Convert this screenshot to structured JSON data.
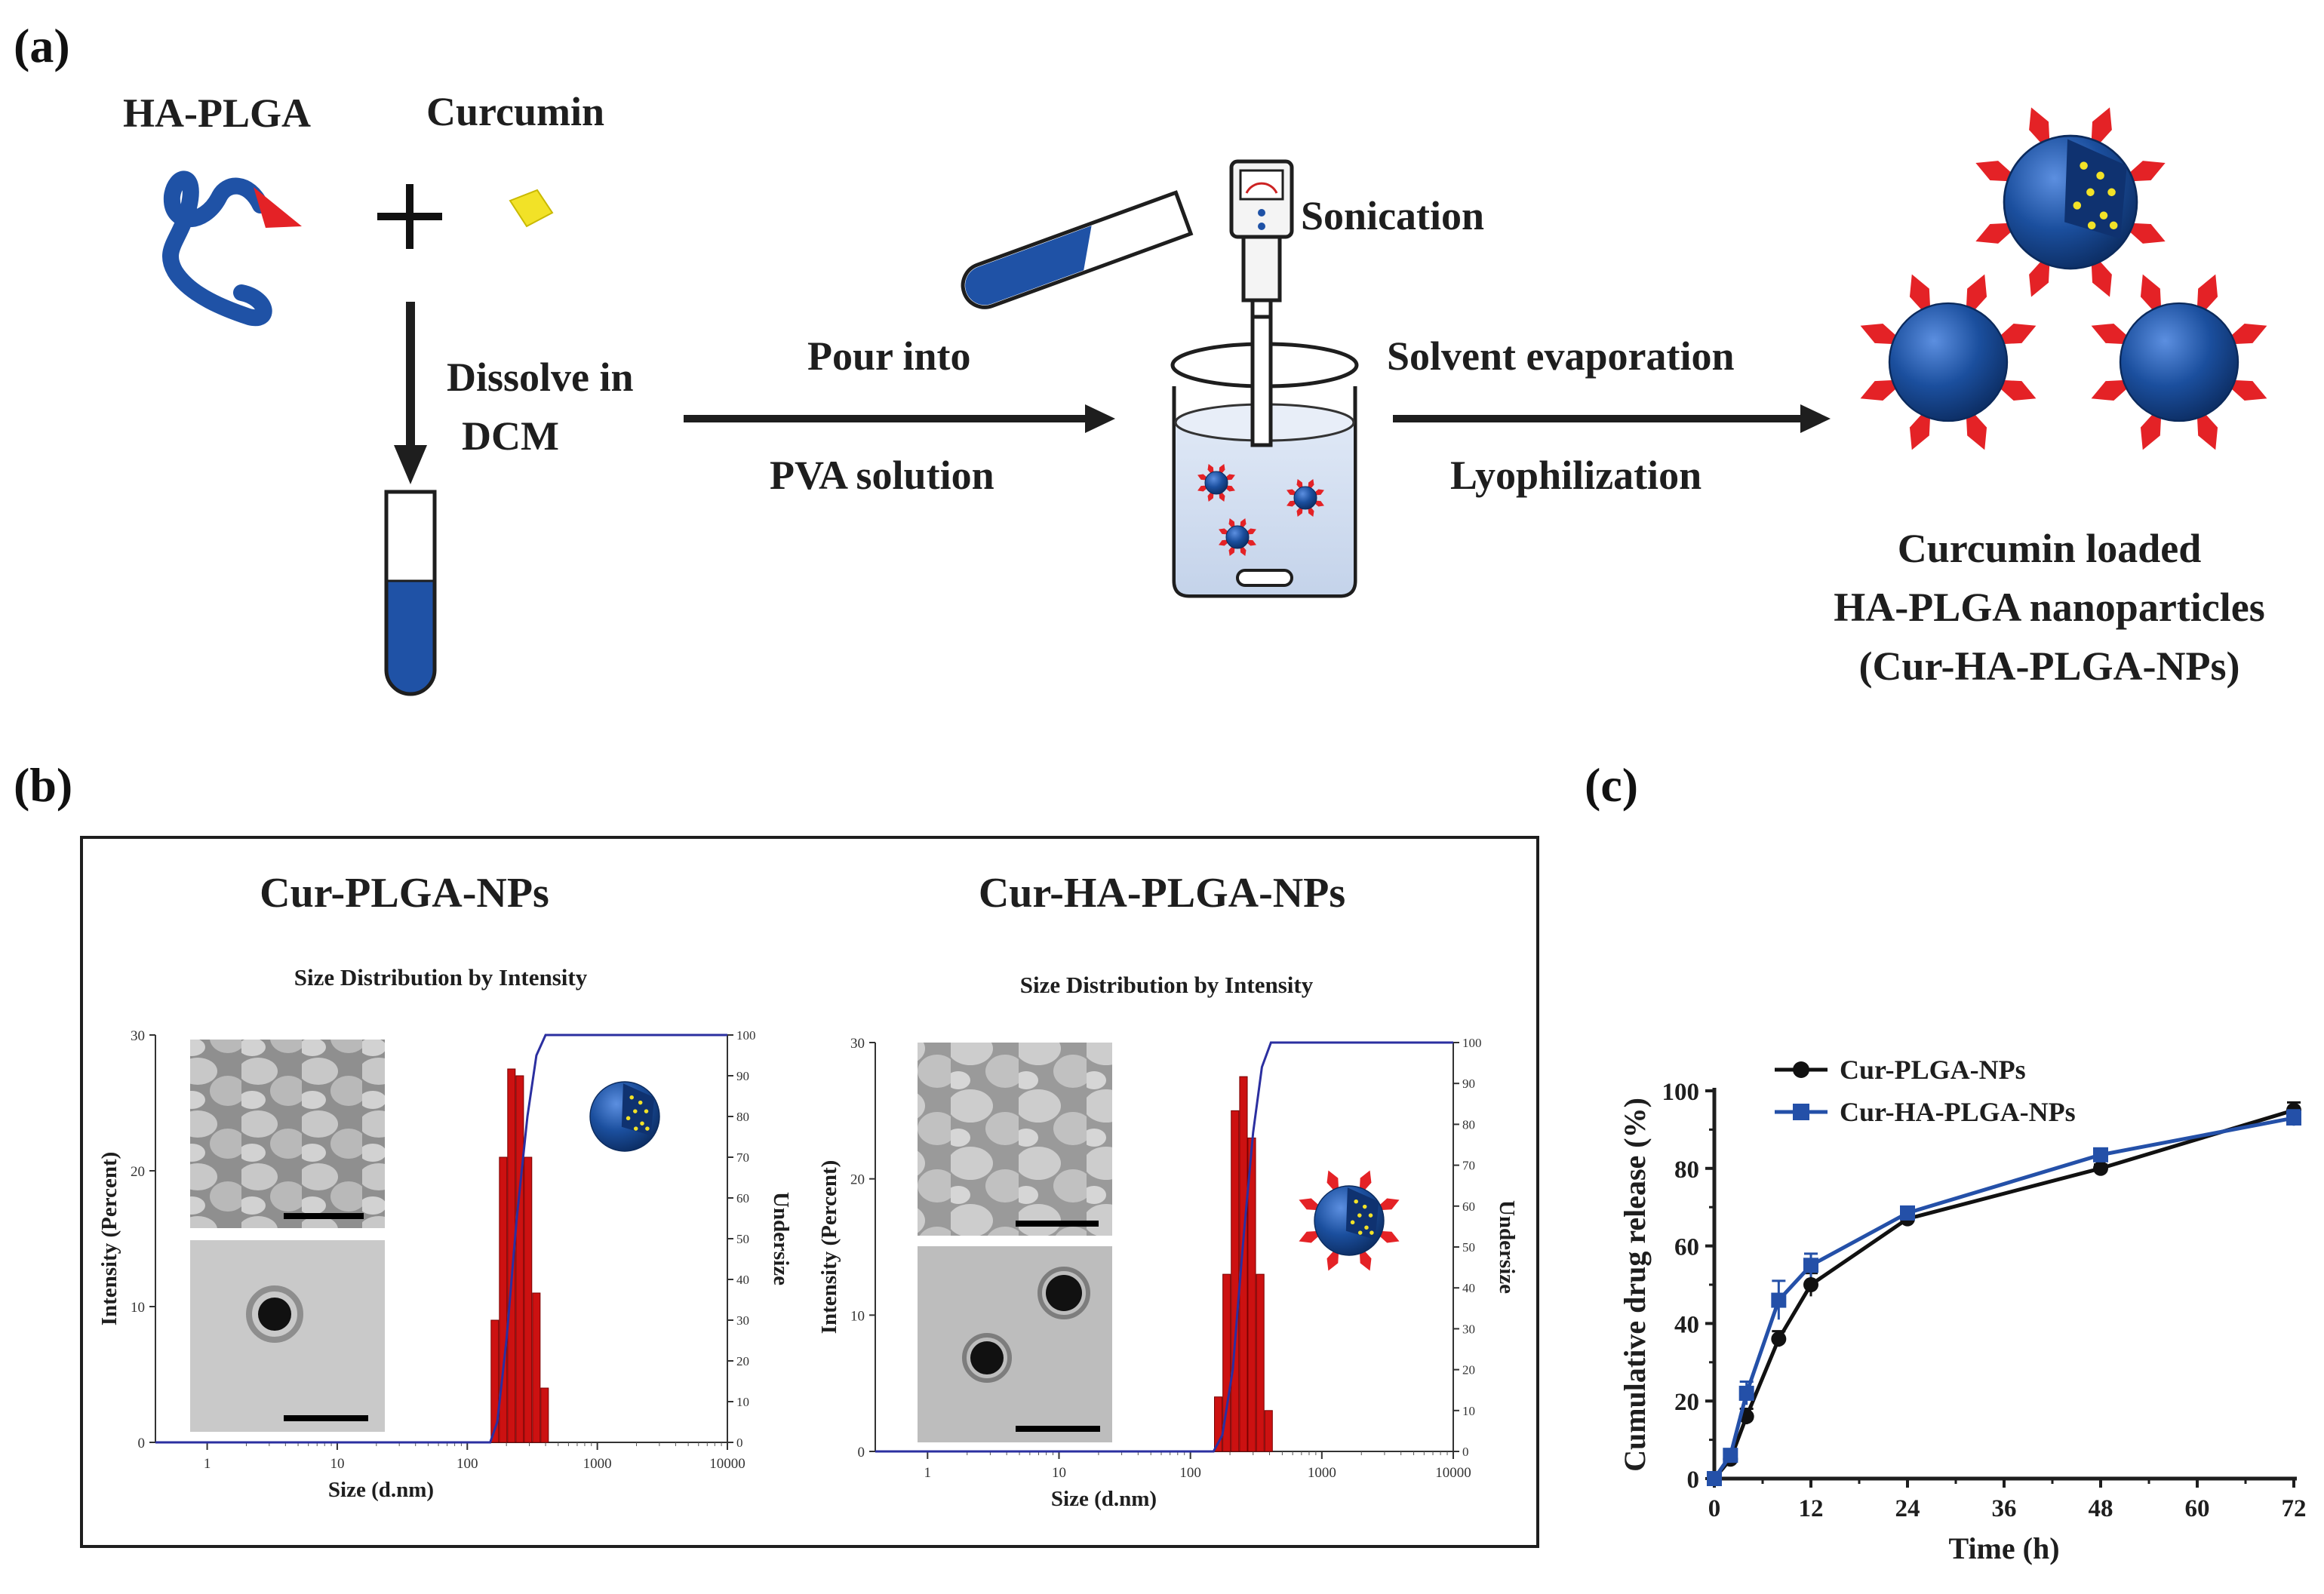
{
  "panel_labels": {
    "a": "(a)",
    "b": "(b)",
    "c": "(c)"
  },
  "scheme": {
    "polymer_label": "HA-PLGA",
    "drug_label": "Curcumin",
    "plus": "+",
    "step1": [
      "Dissolve in",
      "DCM"
    ],
    "step2_top": "Pour into",
    "step2_bottom": "PVA solution",
    "sonication": "Sonication",
    "step3_top": "Solvent evaporation",
    "step3_bottom": "Lyophilization",
    "product": [
      "Curcumin loaded",
      "HA-PLGA nanoparticles",
      "(Cur-HA-PLGA-NPs)"
    ],
    "colors": {
      "polymer": "#1f52a6",
      "ha": "#e42226",
      "curcumin": "#f2e227",
      "particle": "#1b4f9e"
    }
  },
  "chart_data": [
    {
      "type": "bar",
      "panel": "b-left",
      "title": "Cur-PLGA-NPs",
      "subtitle": "Size Distribution by Intensity",
      "xlabel": "Size (d.nm)",
      "ylabel": "Intensity (Percent)",
      "y2label": "Undersize",
      "xscale": "log",
      "xlim": [
        0.4,
        10000
      ],
      "xticks": [
        "1",
        "10",
        "100",
        "1000",
        "10000"
      ],
      "ylim": [
        0,
        30
      ],
      "yticks": [
        "0",
        "10",
        "20",
        "30"
      ],
      "y2lim": [
        0,
        100
      ],
      "y2ticks": [
        "0",
        "10",
        "20",
        "30",
        "40",
        "50",
        "60",
        "70",
        "80",
        "90",
        "100"
      ],
      "bins": [
        164,
        190,
        220,
        255,
        295,
        342,
        396
      ],
      "values": [
        9,
        21,
        27.5,
        27,
        21,
        11,
        4
      ],
      "cumulative": {
        "x": [
          0.4,
          150,
          170,
          200,
          240,
          290,
          340,
          400,
          10000
        ],
        "y": [
          0,
          0,
          5,
          25,
          55,
          80,
          95,
          100,
          100
        ]
      },
      "bar_color": "#cc1111",
      "line_color": "#2b2fa0",
      "inset_scale": "scale bar"
    },
    {
      "type": "bar",
      "panel": "b-right",
      "title": "Cur-HA-PLGA-NPs",
      "subtitle": "Size Distribution by Intensity",
      "xlabel": "Size (d.nm)",
      "ylabel": "Intensity (Percent)",
      "y2label": "Undersize",
      "xscale": "log",
      "xlim": [
        0.4,
        10000
      ],
      "xticks": [
        "1",
        "10",
        "100",
        "1000",
        "10000"
      ],
      "ylim": [
        0,
        30
      ],
      "yticks": [
        "0",
        "10",
        "20",
        "30"
      ],
      "y2lim": [
        0,
        100
      ],
      "y2ticks": [
        "0",
        "10",
        "20",
        "30",
        "40",
        "50",
        "60",
        "70",
        "80",
        "90",
        "100"
      ],
      "bins": [
        164,
        190,
        220,
        255,
        295,
        342,
        396
      ],
      "values": [
        4,
        13,
        25,
        27.5,
        23,
        13,
        3
      ],
      "cumulative": {
        "x": [
          0.4,
          150,
          175,
          210,
          250,
          300,
          350,
          410,
          10000
        ],
        "y": [
          0,
          0,
          4,
          20,
          50,
          78,
          94,
          100,
          100
        ]
      },
      "bar_color": "#cc1111",
      "line_color": "#2b2fa0"
    },
    {
      "type": "line",
      "panel": "c",
      "xlabel": "Time (h)",
      "ylabel": "Cumulative drug release (%)",
      "xlim": [
        0,
        72
      ],
      "xticks": [
        0,
        12,
        24,
        36,
        48,
        60,
        72
      ],
      "ylim": [
        0,
        100
      ],
      "yticks": [
        0,
        20,
        40,
        60,
        80,
        100
      ],
      "series": [
        {
          "name": "Cur-PLGA-NPs",
          "marker": "circle",
          "color": "#111111",
          "x": [
            0,
            2,
            4,
            8,
            12,
            24,
            48,
            72
          ],
          "y": [
            0,
            5,
            16,
            36,
            50,
            67,
            80,
            95
          ],
          "err": [
            1,
            1,
            2,
            2,
            3,
            1,
            1,
            2
          ]
        },
        {
          "name": "Cur-HA-PLGA-NPs",
          "marker": "square",
          "color": "#2450a8",
          "x": [
            0,
            2,
            4,
            8,
            12,
            24,
            48,
            72
          ],
          "y": [
            0,
            6,
            22,
            46,
            55,
            68.5,
            83.5,
            93
          ],
          "err": [
            1,
            1,
            3,
            5,
            3,
            1,
            1,
            2
          ]
        }
      ]
    }
  ]
}
